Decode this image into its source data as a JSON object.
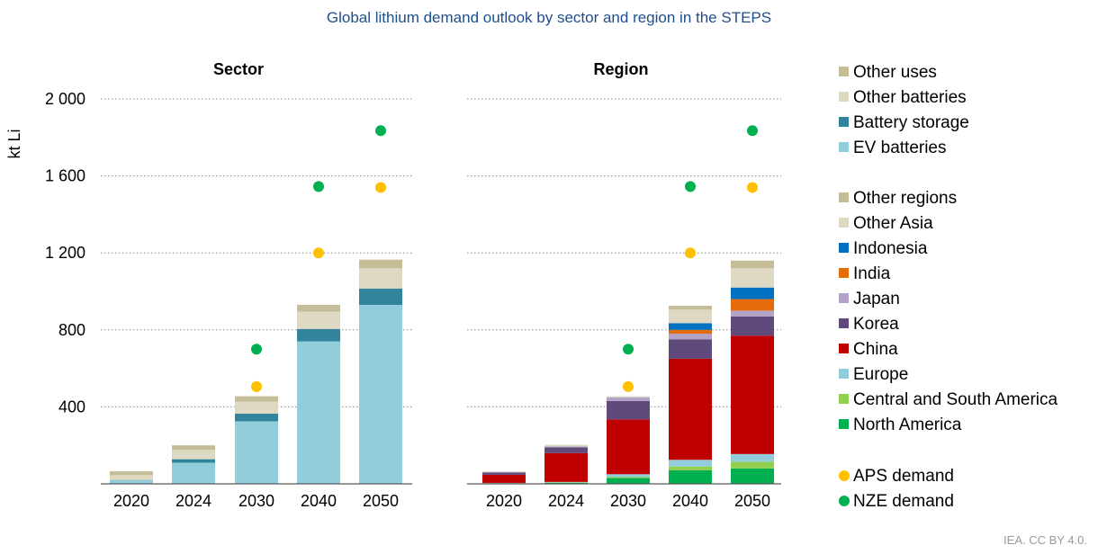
{
  "title": "Global lithium demand outlook by sector and region in the STEPS",
  "credit": "IEA. CC BY 4.0.",
  "chart_data": [
    {
      "type": "bar",
      "stacked": true,
      "title": "Sector",
      "ylabel": "kt Li",
      "ylim": [
        0,
        2000
      ],
      "yticks": [
        400,
        800,
        1200,
        1600,
        2000
      ],
      "ytick_labels": [
        "400",
        "800",
        "1 200",
        "1 600",
        "2 000"
      ],
      "categories": [
        "2020",
        "2024",
        "2030",
        "2040",
        "2050"
      ],
      "series": [
        {
          "name": "EV batteries",
          "color": "#92cddc",
          "values": [
            18,
            110,
            325,
            740,
            930
          ]
        },
        {
          "name": "Battery storage",
          "color": "#31849b",
          "values": [
            2,
            18,
            40,
            65,
            85
          ]
        },
        {
          "name": "Other batteries",
          "color": "#ddd9c3",
          "values": [
            25,
            48,
            62,
            90,
            105
          ]
        },
        {
          "name": "Other uses",
          "color": "#c4bd97",
          "values": [
            20,
            24,
            28,
            35,
            45
          ]
        }
      ],
      "markers": [
        {
          "name": "APS demand",
          "color": "#ffc000",
          "values": [
            null,
            null,
            505,
            1200,
            1540
          ]
        },
        {
          "name": "NZE demand",
          "color": "#00b050",
          "values": [
            null,
            null,
            700,
            1545,
            1835
          ]
        }
      ]
    },
    {
      "type": "bar",
      "stacked": true,
      "title": "Region",
      "ylim": [
        0,
        2000
      ],
      "categories": [
        "2020",
        "2024",
        "2030",
        "2040",
        "2050"
      ],
      "series": [
        {
          "name": "North America",
          "color": "#00b050",
          "values": [
            2,
            5,
            30,
            70,
            80
          ]
        },
        {
          "name": "Central and South America",
          "color": "#92d050",
          "values": [
            0,
            2,
            5,
            20,
            35
          ]
        },
        {
          "name": "Europe",
          "color": "#92cddc",
          "values": [
            3,
            3,
            15,
            35,
            40
          ]
        },
        {
          "name": "China",
          "color": "#c00000",
          "values": [
            42,
            150,
            285,
            525,
            615
          ]
        },
        {
          "name": "Korea",
          "color": "#604a7b",
          "values": [
            12,
            30,
            95,
            100,
            100
          ]
        },
        {
          "name": "Japan",
          "color": "#b3a2c7",
          "values": [
            3,
            5,
            20,
            30,
            30
          ]
        },
        {
          "name": "India",
          "color": "#e46c0a",
          "values": [
            0,
            0,
            0,
            20,
            60
          ]
        },
        {
          "name": "Indonesia",
          "color": "#0070c0",
          "values": [
            0,
            0,
            0,
            35,
            60
          ]
        },
        {
          "name": "Other Asia",
          "color": "#ddd9c3",
          "values": [
            2,
            5,
            5,
            70,
            100
          ]
        },
        {
          "name": "Other regions",
          "color": "#c4bd97",
          "values": [
            0,
            2,
            0,
            20,
            40
          ]
        }
      ],
      "markers": [
        {
          "name": "APS demand",
          "color": "#ffc000",
          "values": [
            null,
            null,
            505,
            1200,
            1540
          ]
        },
        {
          "name": "NZE demand",
          "color": "#00b050",
          "values": [
            null,
            null,
            700,
            1545,
            1835
          ]
        }
      ]
    }
  ],
  "legend": {
    "sector": [
      {
        "name": "Other uses",
        "color": "#c4bd97"
      },
      {
        "name": "Other batteries",
        "color": "#ddd9c3"
      },
      {
        "name": "Battery storage",
        "color": "#31849b"
      },
      {
        "name": "EV batteries",
        "color": "#92cddc"
      }
    ],
    "region": [
      {
        "name": "Other regions",
        "color": "#c4bd97"
      },
      {
        "name": "Other Asia",
        "color": "#ddd9c3"
      },
      {
        "name": "Indonesia",
        "color": "#0070c0"
      },
      {
        "name": "India",
        "color": "#e46c0a"
      },
      {
        "name": "Japan",
        "color": "#b3a2c7"
      },
      {
        "name": "Korea",
        "color": "#604a7b"
      },
      {
        "name": "China",
        "color": "#c00000"
      },
      {
        "name": "Europe",
        "color": "#92cddc"
      },
      {
        "name": "Central and South America",
        "color": "#92d050"
      },
      {
        "name": "North America",
        "color": "#00b050"
      }
    ],
    "scenarios": [
      {
        "name": "APS demand",
        "color": "#ffc000"
      },
      {
        "name": "NZE demand",
        "color": "#00b050"
      }
    ]
  }
}
